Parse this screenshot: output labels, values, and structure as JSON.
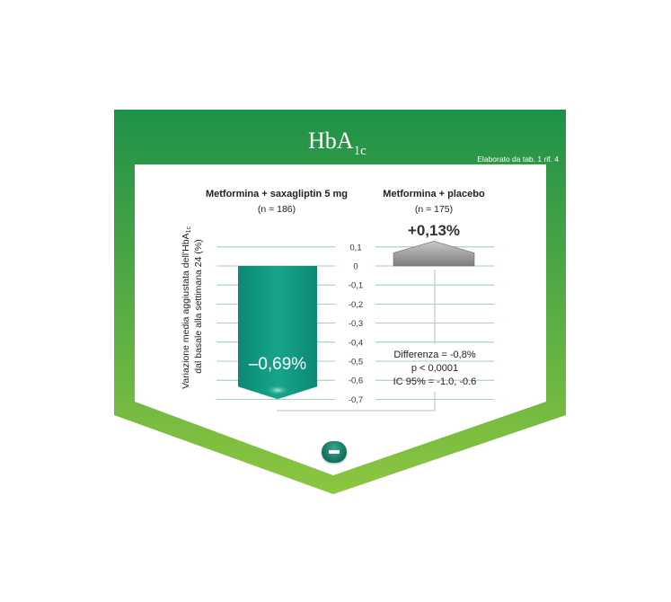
{
  "title_main": "HbA",
  "title_sub": "1c",
  "source_note": "Elaborato da tab. 1 rif. 4",
  "ylabel_line1": "Variazione media aggiustata dell'HbA",
  "ylabel_sub": "1c",
  "ylabel_line2": "dal basale alla settimana 24 (%)",
  "stats": {
    "line1": "Differenza = -0,8%",
    "line2": "p < 0,0001",
    "line3": "IC 95% = -1.0, -0.6"
  },
  "colors": {
    "frame_top": "#1e9148",
    "frame_bottom": "#8dc63f",
    "bar_saxa": "#12967f",
    "bar_placebo": "#9a9a9a",
    "grid": "#8fbfa0"
  },
  "icons": [
    "minus-icon"
  ],
  "chart_data": {
    "type": "bar",
    "categories": [
      "Metformina + saxagliptin 5 mg",
      "Metformina + placebo"
    ],
    "sample_sizes": [
      "(n = 186)",
      "(n = 175)"
    ],
    "values": [
      -0.69,
      0.13
    ],
    "value_labels": [
      "–0,69%",
      "+0,13%"
    ],
    "yticks": [
      "0,1",
      "0",
      "-0,1",
      "-0,2",
      "-0,3",
      "-0,4",
      "-0,5",
      "-0,6",
      "-0,7"
    ],
    "ytick_values": [
      0.1,
      0,
      -0.1,
      -0.2,
      -0.3,
      -0.4,
      -0.5,
      -0.6,
      -0.7
    ],
    "ylim": [
      -0.7,
      0.1
    ],
    "grid": true
  }
}
